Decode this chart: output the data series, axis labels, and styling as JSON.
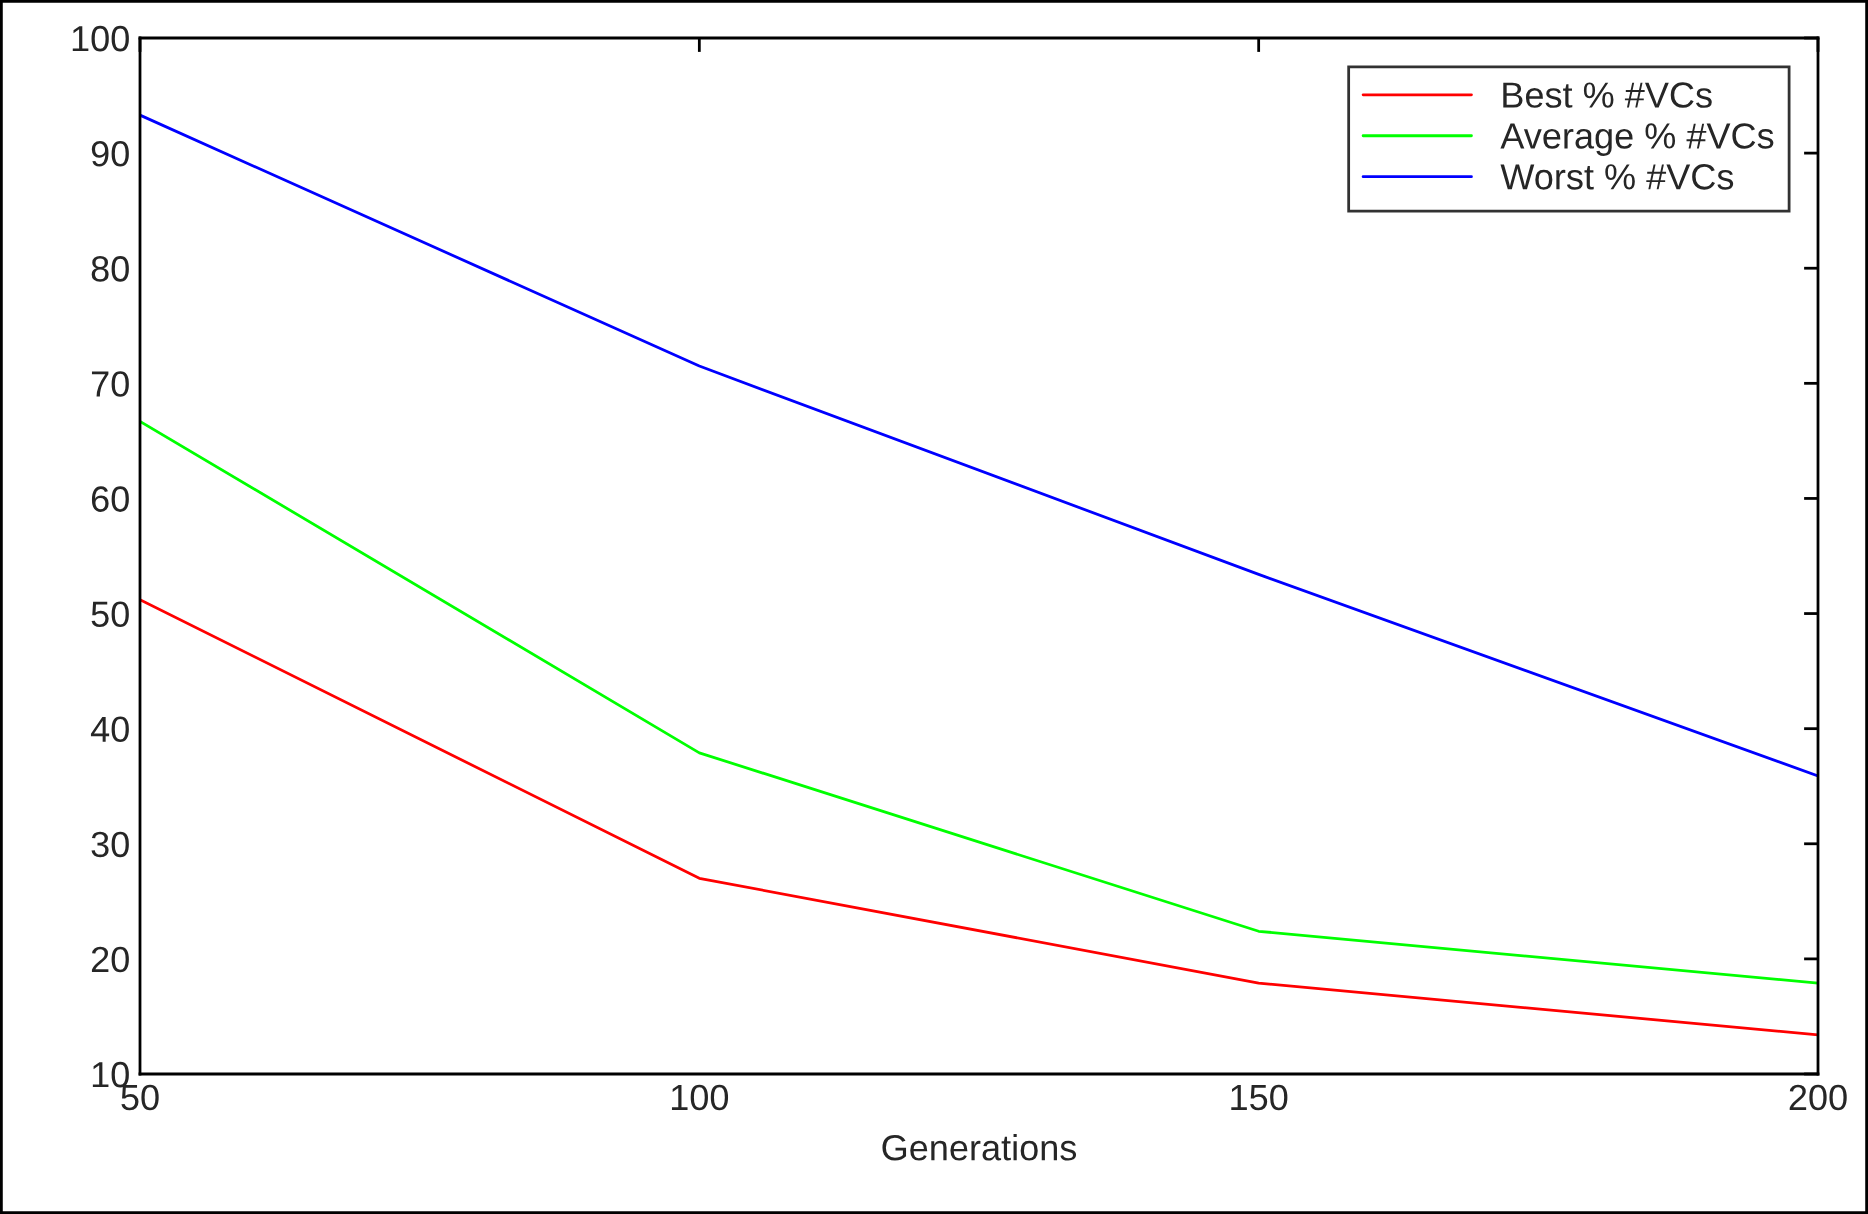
{
  "chart_data": {
    "type": "line",
    "xlabel": "Generations",
    "x": [
      50,
      100,
      150,
      200
    ],
    "series": [
      {
        "name": "Best % #VCs",
        "color": "#ff0000",
        "values": [
          51.2,
          27.0,
          17.9,
          13.4
        ]
      },
      {
        "name": "Average % #VCs",
        "color": "#00ff00",
        "values": [
          66.7,
          37.9,
          22.4,
          17.9
        ]
      },
      {
        "name": "Worst % #VCs",
        "color": "#0000ff",
        "values": [
          93.3,
          71.5,
          53.4,
          35.9
        ]
      }
    ],
    "xlim": [
      50,
      200
    ],
    "xticks": [
      50,
      100,
      150,
      200
    ],
    "ylim": [
      10,
      100
    ],
    "yticks": [
      10,
      20,
      30,
      40,
      50,
      60,
      70,
      80,
      90,
      100
    ],
    "grid": false,
    "legend": "top right",
    "marker": "none",
    "line_style": "solid"
  }
}
